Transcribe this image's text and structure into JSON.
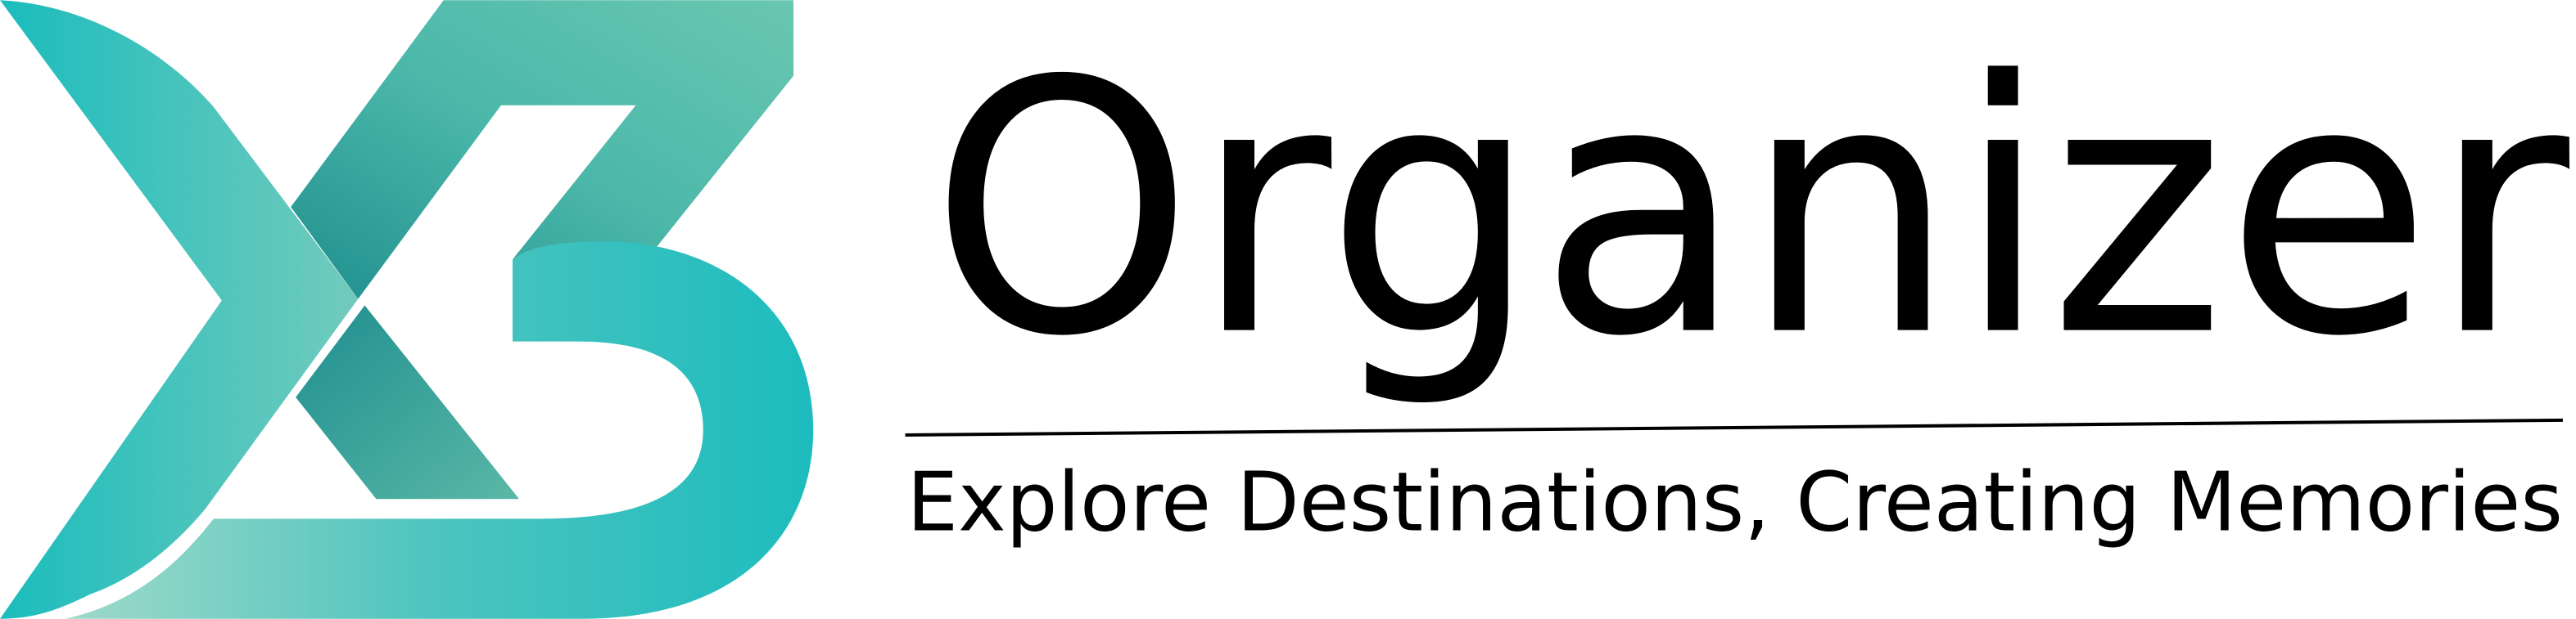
{
  "logo": {
    "name": "Organizer",
    "tagline": "Explore Destinations, Creating Memories"
  }
}
